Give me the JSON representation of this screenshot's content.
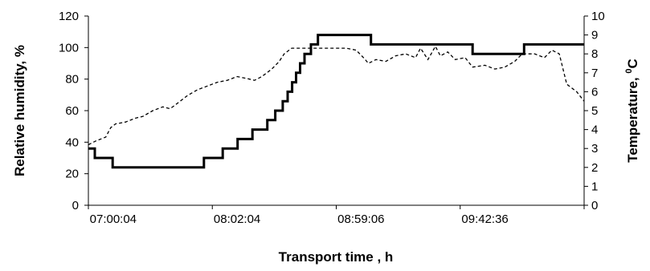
{
  "chart_data": {
    "type": "line",
    "title": "",
    "xlabel": "Transport time , h",
    "ylabel": "Relative humidity, %",
    "y2label": "Temperature, ",
    "y2label_unit_sup": "0",
    "y2label_unit": "C",
    "x_tick_labels": [
      "07:00:04",
      "08:02:04",
      "08:59:06",
      "09:42:36"
    ],
    "x_tick_positions": [
      0.05,
      0.3,
      0.55,
      0.8
    ],
    "xlim": [
      0,
      1
    ],
    "ylim": [
      0,
      120
    ],
    "y_ticks": [
      0,
      20,
      40,
      60,
      80,
      100,
      120
    ],
    "y2lim": [
      0,
      10
    ],
    "y2_ticks": [
      0,
      1,
      2,
      3,
      4,
      5,
      6,
      7,
      8,
      9,
      10
    ],
    "grid": false,
    "series": [
      {
        "axis": "left",
        "style": "solid",
        "color": "#000000",
        "x": [
          0.0,
          0.013,
          0.013,
          0.049,
          0.049,
          0.233,
          0.233,
          0.271,
          0.271,
          0.301,
          0.301,
          0.331,
          0.331,
          0.361,
          0.361,
          0.377,
          0.377,
          0.392,
          0.392,
          0.402,
          0.402,
          0.411,
          0.411,
          0.419,
          0.419,
          0.427,
          0.427,
          0.436,
          0.436,
          0.449,
          0.449,
          0.463,
          0.463,
          0.479,
          0.479,
          0.57,
          0.57,
          0.775,
          0.775,
          0.879,
          0.879,
          1.0
        ],
        "y": [
          36,
          36,
          30,
          30,
          24,
          24,
          30,
          30,
          36,
          36,
          42,
          42,
          48,
          48,
          54,
          54,
          60,
          60,
          66,
          66,
          72,
          72,
          78,
          78,
          84,
          84,
          90,
          90,
          96,
          96,
          102,
          102,
          108,
          108,
          108,
          108,
          102,
          102,
          96,
          96,
          102,
          102
        ]
      },
      {
        "axis": "right",
        "style": "dashed",
        "color": "#000000",
        "x": [
          0.0,
          0.015,
          0.035,
          0.045,
          0.055,
          0.075,
          0.095,
          0.11,
          0.13,
          0.15,
          0.165,
          0.18,
          0.2,
          0.22,
          0.24,
          0.26,
          0.28,
          0.3,
          0.32,
          0.335,
          0.35,
          0.37,
          0.385,
          0.395,
          0.41,
          0.425,
          0.445,
          0.47,
          0.5,
          0.52,
          0.54,
          0.555,
          0.565,
          0.58,
          0.6,
          0.62,
          0.64,
          0.66,
          0.67,
          0.685,
          0.7,
          0.71,
          0.725,
          0.74,
          0.76,
          0.775,
          0.8,
          0.82,
          0.84,
          0.86,
          0.875,
          0.9,
          0.92,
          0.935,
          0.95,
          0.965,
          0.985,
          1.0
        ],
        "y": [
          3.2,
          3.4,
          3.6,
          4.1,
          4.3,
          4.4,
          4.6,
          4.7,
          5.0,
          5.2,
          5.1,
          5.4,
          5.8,
          6.1,
          6.3,
          6.5,
          6.6,
          6.8,
          6.7,
          6.6,
          6.8,
          7.2,
          7.6,
          8.0,
          8.3,
          8.3,
          8.3,
          8.3,
          8.3,
          8.3,
          8.2,
          7.8,
          7.5,
          7.7,
          7.6,
          7.9,
          8.0,
          7.8,
          8.3,
          7.7,
          8.4,
          7.9,
          8.1,
          7.7,
          7.8,
          7.3,
          7.4,
          7.2,
          7.3,
          7.6,
          8.0,
          8.0,
          7.8,
          8.2,
          8.0,
          6.4,
          6.0,
          5.5
        ]
      }
    ]
  }
}
